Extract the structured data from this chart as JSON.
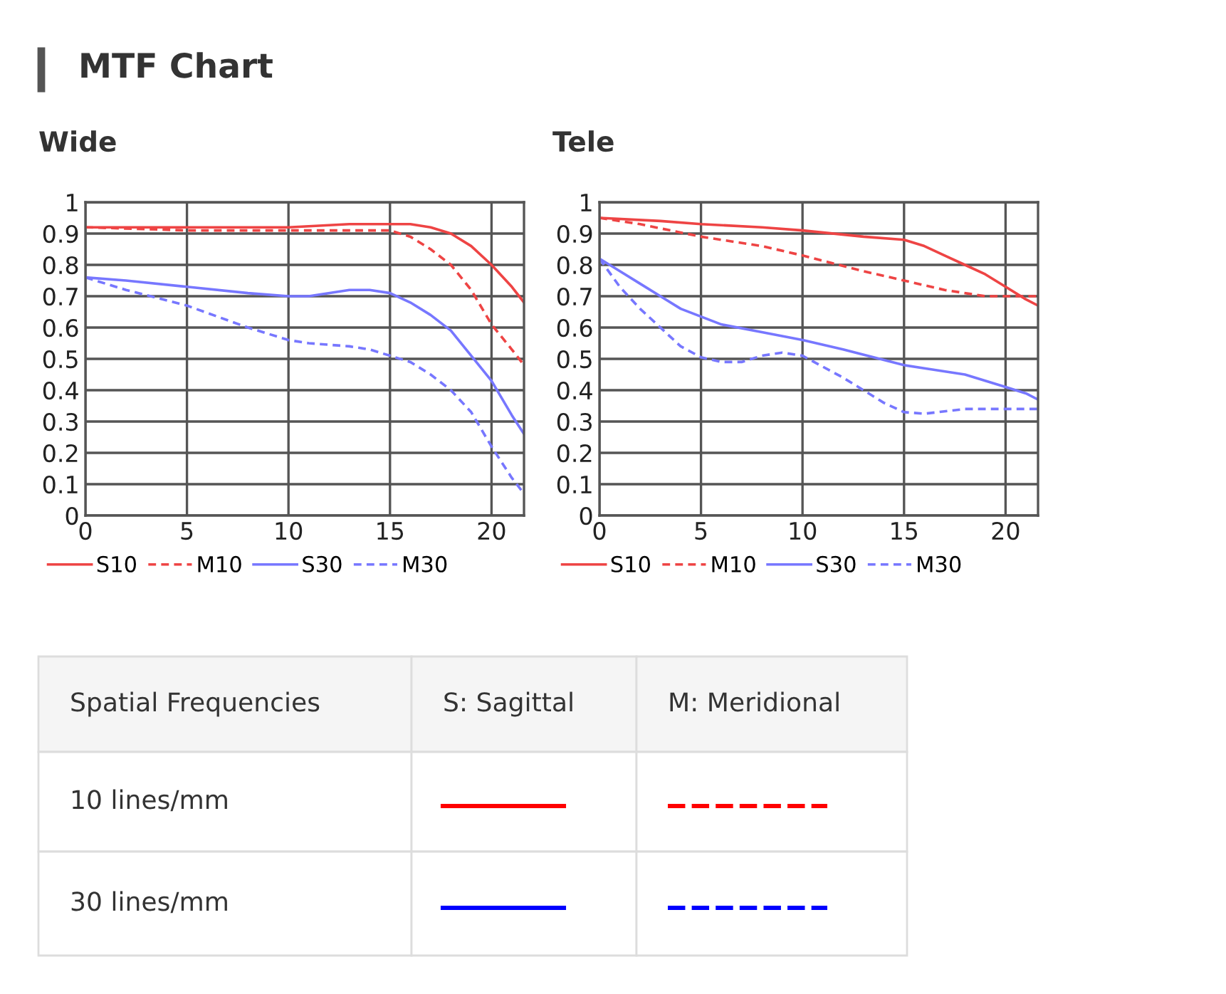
{
  "chart_data": [
    {
      "type": "line",
      "title": "Wide",
      "annotations": [
        "MTF Chart",
        "Spatial Frequencies",
        "S: Sagittal",
        "M: Meridional",
        "10 lines/mm",
        "30 lines/mm"
      ],
      "xlim": [
        0,
        21.6
      ],
      "ylim": [
        0,
        1
      ],
      "xticks": [
        0,
        5,
        10,
        15,
        20
      ],
      "yticks": [
        0,
        0.1,
        0.2,
        0.3,
        0.4,
        0.5,
        0.6,
        0.7,
        0.8,
        0.9,
        1
      ],
      "grid": true,
      "legend": "bottom",
      "series": [
        {
          "name": "S10",
          "color": "#ee4444",
          "line_style": "solid",
          "x": [
            0,
            5,
            10,
            13,
            15,
            16,
            17,
            18,
            19,
            20,
            21,
            21.6
          ],
          "values": [
            0.92,
            0.92,
            0.92,
            0.93,
            0.93,
            0.93,
            0.92,
            0.9,
            0.86,
            0.8,
            0.73,
            0.68
          ]
        },
        {
          "name": "M10",
          "color": "#ee4444",
          "line_style": "dashed",
          "x": [
            0,
            5,
            10,
            14,
            15,
            16,
            17,
            18,
            19,
            20,
            21,
            21.6
          ],
          "values": [
            0.92,
            0.91,
            0.91,
            0.91,
            0.91,
            0.89,
            0.85,
            0.8,
            0.72,
            0.61,
            0.53,
            0.48
          ]
        },
        {
          "name": "S30",
          "color": "#7777ff",
          "line_style": "solid",
          "x": [
            0,
            2,
            5,
            8,
            10,
            11,
            13,
            14,
            15,
            16,
            17,
            18,
            19,
            20,
            21,
            21.6
          ],
          "values": [
            0.76,
            0.75,
            0.73,
            0.71,
            0.7,
            0.7,
            0.72,
            0.72,
            0.71,
            0.68,
            0.64,
            0.59,
            0.51,
            0.43,
            0.32,
            0.26
          ]
        },
        {
          "name": "M30",
          "color": "#7777ff",
          "line_style": "dashed",
          "x": [
            0,
            2,
            5,
            8,
            10,
            11,
            13,
            14,
            15,
            16,
            17,
            18,
            19,
            20,
            21,
            21.6
          ],
          "values": [
            0.76,
            0.72,
            0.67,
            0.6,
            0.56,
            0.55,
            0.54,
            0.53,
            0.51,
            0.49,
            0.45,
            0.4,
            0.33,
            0.22,
            0.12,
            0.07
          ]
        }
      ]
    },
    {
      "type": "line",
      "title": "Tele",
      "xlim": [
        0,
        21.6
      ],
      "ylim": [
        0,
        1
      ],
      "xticks": [
        0,
        5,
        10,
        15,
        20
      ],
      "yticks": [
        0,
        0.1,
        0.2,
        0.3,
        0.4,
        0.5,
        0.6,
        0.7,
        0.8,
        0.9,
        1
      ],
      "grid": true,
      "legend": "bottom",
      "series": [
        {
          "name": "S10",
          "color": "#ee4444",
          "line_style": "solid",
          "x": [
            0,
            3,
            5,
            8,
            10,
            13,
            15,
            16,
            17,
            18,
            19,
            20,
            21,
            21.6
          ],
          "values": [
            0.95,
            0.94,
            0.93,
            0.92,
            0.91,
            0.89,
            0.88,
            0.86,
            0.83,
            0.8,
            0.77,
            0.73,
            0.69,
            0.67
          ]
        },
        {
          "name": "M10",
          "color": "#ee4444",
          "line_style": "dashed",
          "x": [
            0,
            2,
            5,
            8,
            10,
            13,
            15,
            17,
            19,
            21,
            21.6
          ],
          "values": [
            0.95,
            0.93,
            0.89,
            0.86,
            0.83,
            0.78,
            0.75,
            0.72,
            0.7,
            0.7,
            0.7
          ]
        },
        {
          "name": "S30",
          "color": "#7777ff",
          "line_style": "solid",
          "x": [
            0,
            1,
            2,
            3,
            4,
            5,
            6,
            8,
            10,
            12,
            15,
            16,
            18,
            19,
            20,
            21,
            21.6
          ],
          "values": [
            0.82,
            0.78,
            0.74,
            0.7,
            0.66,
            0.635,
            0.61,
            0.585,
            0.56,
            0.53,
            0.48,
            0.47,
            0.45,
            0.43,
            0.41,
            0.39,
            0.37
          ]
        },
        {
          "name": "M30",
          "color": "#7777ff",
          "line_style": "dashed",
          "x": [
            0,
            1,
            2,
            3,
            4,
            5,
            6,
            7,
            8,
            9,
            10,
            12,
            14,
            15,
            16,
            18,
            20,
            21.6
          ],
          "values": [
            0.82,
            0.73,
            0.66,
            0.6,
            0.54,
            0.505,
            0.49,
            0.49,
            0.51,
            0.52,
            0.51,
            0.44,
            0.36,
            0.33,
            0.325,
            0.34,
            0.34,
            0.34
          ]
        }
      ]
    }
  ]
}
